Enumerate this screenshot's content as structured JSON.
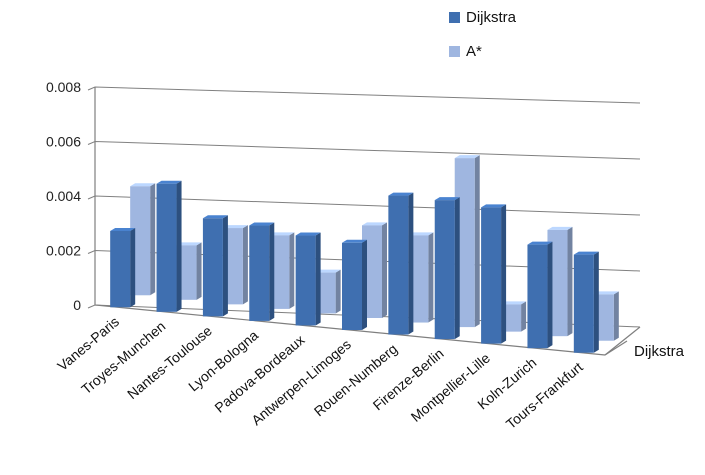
{
  "chart_data": {
    "type": "bar",
    "categories": [
      "Vanes-Paris",
      "Troyes-Munchen",
      "Nantes-Toulouse",
      "Lyon-Bologna",
      "Padova-Bordeaux",
      "Antwerpen-Limoges",
      "Rouen-Numberg",
      "Firenze-Berlin",
      "Montpellier-Lille",
      "Koln-Zurich",
      "Tours-Frankfurt"
    ],
    "series": [
      {
        "name": "Dijkstra",
        "values": [
          0.0028,
          0.0047,
          0.0036,
          0.0035,
          0.0033,
          0.0032,
          0.0051,
          0.0051,
          0.005,
          0.0038,
          0.0036
        ],
        "color": "#3f6fb0"
      },
      {
        "name": "A*",
        "values": [
          0.004,
          0.002,
          0.0028,
          0.0027,
          0.0015,
          0.0034,
          0.0032,
          0.0062,
          0.001,
          0.0039,
          0.0017
        ],
        "color": "#9fb6e0"
      }
    ],
    "ylim": [
      0,
      0.008
    ],
    "yticks": [
      "0",
      "0.002",
      "0.004",
      "0.006",
      "0.008"
    ],
    "depth_label": "Dijkstra",
    "legend_position": "top-right",
    "grid": true
  }
}
